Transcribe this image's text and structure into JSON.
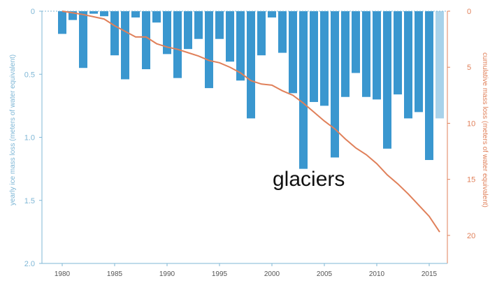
{
  "chart_data": {
    "type": "bar",
    "title": "",
    "xlabel": "",
    "ylabel": "yearly ice mass loss (meters of water equivalent)",
    "y2label": "cumulative mass loss (meters of water equivalent)",
    "annotation": "glaciers",
    "x": [
      1980,
      1981,
      1982,
      1983,
      1984,
      1985,
      1986,
      1987,
      1988,
      1989,
      1990,
      1991,
      1992,
      1993,
      1994,
      1995,
      1996,
      1997,
      1998,
      1999,
      2000,
      2001,
      2002,
      2003,
      2004,
      2005,
      2006,
      2007,
      2008,
      2009,
      2010,
      2011,
      2012,
      2013,
      2014,
      2015,
      2016
    ],
    "x_ticks": [
      "1980",
      "1985",
      "1990",
      "1995",
      "2000",
      "2005",
      "2010",
      "2015"
    ],
    "ylim": [
      0,
      2.0
    ],
    "y_inverted": true,
    "y_ticks": [
      "0",
      "0.5",
      "1.0",
      "1.5",
      "2.0"
    ],
    "y2lim": [
      0,
      22.5
    ],
    "y2_inverted": true,
    "y2_ticks": [
      "0",
      "5",
      "10",
      "15",
      "20"
    ],
    "series": [
      {
        "kind": "bar",
        "axis": "left",
        "color": "#3a97cf",
        "last_color": "#a8d2ea",
        "values": [
          0.18,
          0.07,
          0.45,
          0.02,
          0.04,
          0.35,
          0.54,
          0.05,
          0.46,
          0.09,
          0.34,
          0.53,
          0.3,
          0.22,
          0.61,
          0.22,
          0.4,
          0.55,
          0.85,
          0.35,
          0.05,
          0.33,
          0.65,
          1.25,
          0.72,
          0.75,
          1.16,
          0.68,
          0.49,
          0.68,
          0.7,
          1.09,
          0.66,
          0.85,
          0.8,
          1.18,
          0.85
        ]
      },
      {
        "kind": "line",
        "axis": "right",
        "color": "#e0805a",
        "values": [
          0.0,
          0.15,
          0.3,
          0.5,
          0.7,
          1.3,
          1.8,
          2.3,
          2.3,
          2.9,
          3.2,
          3.4,
          3.7,
          4.0,
          4.4,
          4.6,
          5.0,
          5.5,
          6.2,
          6.5,
          6.6,
          7.1,
          7.5,
          8.2,
          9.0,
          9.8,
          10.5,
          11.4,
          12.2,
          12.8,
          13.6,
          14.6,
          15.4,
          16.3,
          17.3,
          18.3,
          19.7
        ]
      }
    ],
    "grid": false,
    "legend": "none"
  }
}
